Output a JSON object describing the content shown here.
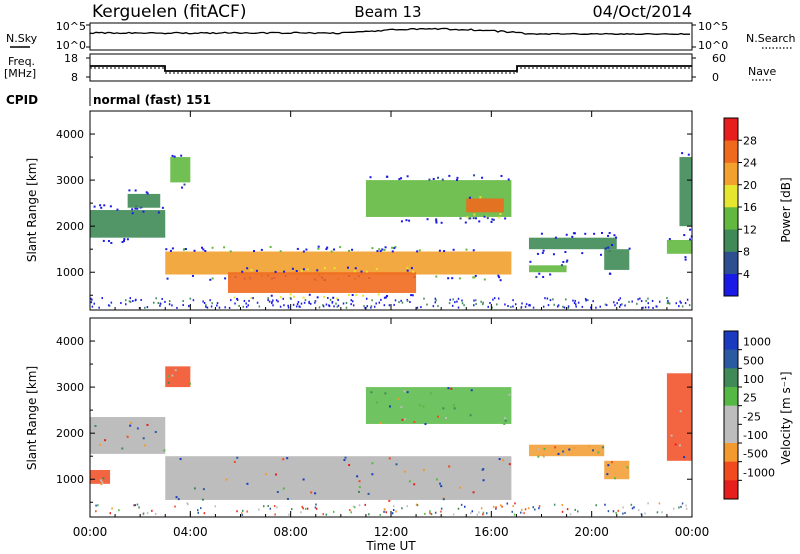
{
  "header": {
    "station": "Kerguelen (fitACF)",
    "beam": "Beam 13",
    "date": "04/Oct/2014"
  },
  "control_panels": {
    "nsky_label": "N.Sky",
    "nsky_ticks": [
      "10^5",
      "10^0"
    ],
    "nsearch_label": "N.Search",
    "nsearch_ticks": [
      "10^5",
      "10^0"
    ],
    "freq_label_1": "Freq.",
    "freq_label_2": "[MHz]",
    "freq_ticks": [
      "18",
      "8"
    ],
    "nave_label": "Nave",
    "nave_ticks": [
      "60",
      "0"
    ],
    "cpid_label": "CPID",
    "cpid_text": "normal (fast) 151"
  },
  "colors": {
    "power_scale": [
      "#1a1ae6",
      "#2e4f8f",
      "#3f8a57",
      "#63b840",
      "#e6e62e",
      "#f2a02e",
      "#f06a1e",
      "#e61e1e"
    ],
    "velocity_scale": [
      "#e61e1e",
      "#f04a1e",
      "#f29a2e",
      "#bdbdbd",
      "#bdbdbd",
      "#56b844",
      "#3f8a57",
      "#2a5aa0",
      "#1a3ac0"
    ],
    "ground_scatter": "#bdbdbd"
  },
  "x_axis": {
    "label": "Time UT",
    "ticks": [
      "00:00",
      "04:00",
      "08:00",
      "12:00",
      "16:00",
      "20:00",
      "00:00"
    ]
  },
  "chart_data": [
    {
      "type": "heatmap",
      "panel": "power",
      "ylabel": "Slant Range [km]",
      "x_range_hours": [
        0,
        24
      ],
      "y_range_km": [
        180,
        4500
      ],
      "y_ticks": [
        "1000",
        "2000",
        "3000",
        "4000"
      ],
      "colorbar_label": "Power [dB]",
      "colorbar_ticks": [
        "4",
        "8",
        "12",
        "16",
        "20",
        "24",
        "28"
      ],
      "colorbar_range": [
        0,
        32
      ],
      "echo_regions": [
        {
          "t_start": 0.0,
          "t_end": 3.0,
          "r_low": 1750,
          "r_high": 2350,
          "power": 10
        },
        {
          "t_start": 1.5,
          "t_end": 2.8,
          "r_low": 2400,
          "r_high": 2700,
          "power": 8
        },
        {
          "t_start": 3.2,
          "t_end": 4.0,
          "r_low": 2950,
          "r_high": 3500,
          "power": 14
        },
        {
          "t_start": 3.0,
          "t_end": 16.8,
          "r_low": 950,
          "r_high": 1450,
          "power": 20
        },
        {
          "t_start": 5.5,
          "t_end": 13.0,
          "r_low": 550,
          "r_high": 1000,
          "power": 26
        },
        {
          "t_start": 11.0,
          "t_end": 16.8,
          "r_low": 2200,
          "r_high": 3000,
          "power": 14
        },
        {
          "t_start": 15.0,
          "t_end": 16.5,
          "r_low": 2300,
          "r_high": 2600,
          "power": 24
        },
        {
          "t_start": 17.5,
          "t_end": 19.0,
          "r_low": 1000,
          "r_high": 1150,
          "power": 14
        },
        {
          "t_start": 17.5,
          "t_end": 21.0,
          "r_low": 1500,
          "r_high": 1750,
          "power": 8
        },
        {
          "t_start": 20.5,
          "t_end": 21.5,
          "r_low": 1050,
          "r_high": 1500,
          "power": 10
        },
        {
          "t_start": 23.0,
          "t_end": 24.0,
          "r_low": 1400,
          "r_high": 1700,
          "power": 12
        },
        {
          "t_start": 23.5,
          "t_end": 24.0,
          "r_low": 2000,
          "r_high": 3500,
          "power": 8
        }
      ]
    },
    {
      "type": "heatmap",
      "panel": "velocity",
      "ylabel": "Slant Range [km]",
      "x_range_hours": [
        0,
        24
      ],
      "y_range_km": [
        180,
        4500
      ],
      "y_ticks": [
        "1000",
        "2000",
        "3000",
        "4000"
      ],
      "colorbar_label": "Velocity [m s⁻¹]",
      "colorbar_ticks": [
        "1000",
        "500",
        "100",
        "25",
        "-25",
        "-100",
        "-500",
        "-1000"
      ],
      "echo_regions": [
        {
          "t_start": 0.0,
          "t_end": 3.0,
          "r_low": 1550,
          "r_high": 2350,
          "velocity": 0,
          "ground_scatter": true
        },
        {
          "t_start": 0.0,
          "t_end": 0.8,
          "r_low": 900,
          "r_high": 1200,
          "velocity": -300
        },
        {
          "t_start": 3.0,
          "t_end": 4.0,
          "r_low": 3000,
          "r_high": 3450,
          "velocity": -400
        },
        {
          "t_start": 3.0,
          "t_end": 16.8,
          "r_low": 550,
          "r_high": 1500,
          "velocity": 0,
          "ground_scatter": true
        },
        {
          "t_start": 11.0,
          "t_end": 16.8,
          "r_low": 2200,
          "r_high": 3000,
          "velocity": 100
        },
        {
          "t_start": 17.5,
          "t_end": 20.5,
          "r_low": 1500,
          "r_high": 1750,
          "velocity": -200
        },
        {
          "t_start": 20.5,
          "t_end": 21.5,
          "r_low": 1000,
          "r_high": 1400,
          "velocity": -200
        },
        {
          "t_start": 23.0,
          "t_end": 24.0,
          "r_low": 1400,
          "r_high": 3300,
          "velocity": -400
        }
      ]
    }
  ]
}
